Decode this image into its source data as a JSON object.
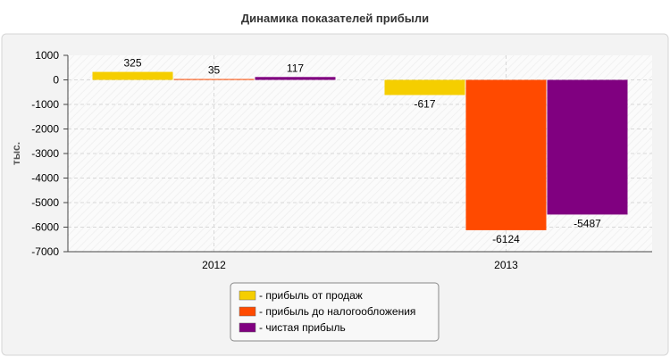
{
  "chart_data": {
    "type": "bar",
    "title": "Динамика показателей прибыли",
    "ylabel": "тыс.",
    "xlabel": "",
    "categories": [
      "2012",
      "2013"
    ],
    "ylim": [
      -7000,
      1000
    ],
    "yticks": [
      1000,
      0,
      -1000,
      -2000,
      -3000,
      -4000,
      -5000,
      -6000,
      -7000
    ],
    "grid": true,
    "legend_position": "bottom",
    "series": [
      {
        "name": "- прибыль от продаж",
        "values": [
          325,
          -617
        ],
        "labels": [
          "325",
          "-617"
        ],
        "color": "#F5CE00"
      },
      {
        "name": "- прибыль до налогообложения",
        "values": [
          35,
          -6124
        ],
        "labels": [
          "35",
          "-6124"
        ],
        "color": "#FF4A00"
      },
      {
        "name": "- чистая прибыль",
        "values": [
          117,
          -5487
        ],
        "labels": [
          "117",
          "-5487"
        ],
        "color": "#800080"
      }
    ]
  }
}
